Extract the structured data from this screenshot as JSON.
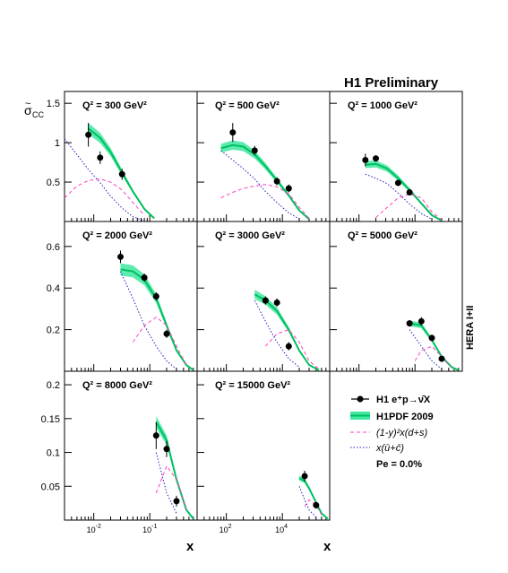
{
  "header": {
    "title": "H1 Preliminary",
    "side_label": "HERA I+II",
    "y_label_main": "σ",
    "y_label_accent": "~",
    "y_label_sub": "CC"
  },
  "x_axis": {
    "label": "x",
    "ticks_rows_1_2_left": [
      "10",
      "10"
    ],
    "tick_exp": [
      "-2",
      "-1"
    ]
  },
  "legend": {
    "data_label": "H1 e⁺p→ν̄X",
    "fit_label": "H1PDF 2009",
    "dashed_label": "(1-y)²x(d+s)",
    "dotted_label": "x(ū+c̄)",
    "pe_label": "Pe = 0.0%"
  },
  "colors": {
    "fit_line": "#00c060",
    "fit_band": "#40e8a0",
    "dashed": "#ff3fbf",
    "dotted": "#2020c0",
    "data": "#000000",
    "frame": "#000000"
  },
  "chart_data": {
    "type": "scatter",
    "x_scale": "log",
    "panels": [
      {
        "q2_label": "Q² = 300 GeV²",
        "ylim": [
          0,
          1.65
        ],
        "yticks": [
          0.5,
          1,
          1.5
        ],
        "points": [
          {
            "x": 0.008,
            "y": 1.1,
            "err": 0.15
          },
          {
            "x": 0.013,
            "y": 0.81,
            "err": 0.08
          },
          {
            "x": 0.032,
            "y": 0.6,
            "err": 0.07
          }
        ],
        "fit": [
          [
            0.008,
            1.18
          ],
          [
            0.013,
            1.06
          ],
          [
            0.02,
            0.88
          ],
          [
            0.032,
            0.62
          ],
          [
            0.05,
            0.38
          ],
          [
            0.08,
            0.16
          ],
          [
            0.12,
            0.04
          ]
        ],
        "dashed": [
          [
            0.003,
            0.3
          ],
          [
            0.005,
            0.45
          ],
          [
            0.008,
            0.52
          ],
          [
            0.013,
            0.54
          ],
          [
            0.02,
            0.5
          ],
          [
            0.032,
            0.4
          ],
          [
            0.05,
            0.24
          ],
          [
            0.08,
            0.08
          ]
        ],
        "dotted": [
          [
            0.003,
            1.05
          ],
          [
            0.005,
            0.85
          ],
          [
            0.008,
            0.66
          ],
          [
            0.013,
            0.49
          ],
          [
            0.02,
            0.32
          ],
          [
            0.032,
            0.17
          ],
          [
            0.05,
            0.06
          ],
          [
            0.08,
            0.01
          ]
        ]
      },
      {
        "q2_label": "Q² = 500 GeV²",
        "ylim": [
          0,
          1.65
        ],
        "yticks": [
          0.5,
          1,
          1.5
        ],
        "points": [
          {
            "x": 0.013,
            "y": 1.13,
            "err": 0.12
          },
          {
            "x": 0.032,
            "y": 0.9,
            "err": 0.06
          },
          {
            "x": 0.08,
            "y": 0.51,
            "err": 0.05
          },
          {
            "x": 0.13,
            "y": 0.42,
            "err": 0.05
          }
        ],
        "fit": [
          [
            0.008,
            0.93
          ],
          [
            0.013,
            0.97
          ],
          [
            0.02,
            0.95
          ],
          [
            0.032,
            0.85
          ],
          [
            0.05,
            0.7
          ],
          [
            0.08,
            0.52
          ],
          [
            0.13,
            0.33
          ],
          [
            0.2,
            0.14
          ],
          [
            0.3,
            0.03
          ]
        ],
        "dashed": [
          [
            0.008,
            0.3
          ],
          [
            0.013,
            0.37
          ],
          [
            0.02,
            0.42
          ],
          [
            0.032,
            0.45
          ],
          [
            0.05,
            0.47
          ],
          [
            0.08,
            0.44
          ],
          [
            0.13,
            0.35
          ],
          [
            0.2,
            0.18
          ],
          [
            0.3,
            0.04
          ]
        ],
        "dotted": [
          [
            0.008,
            0.9
          ],
          [
            0.013,
            0.78
          ],
          [
            0.02,
            0.67
          ],
          [
            0.032,
            0.54
          ],
          [
            0.05,
            0.38
          ],
          [
            0.08,
            0.24
          ],
          [
            0.13,
            0.11
          ],
          [
            0.2,
            0.03
          ]
        ]
      },
      {
        "q2_label": "Q² = 1000 GeV²",
        "ylim": [
          0,
          1.65
        ],
        "yticks": [
          0.5,
          1,
          1.5
        ],
        "points": [
          {
            "x": 0.013,
            "y": 0.78,
            "err": 0.08
          },
          {
            "x": 0.02,
            "y": 0.8,
            "err": 0.04
          },
          {
            "x": 0.05,
            "y": 0.49,
            "err": 0.04
          },
          {
            "x": 0.08,
            "y": 0.37,
            "err": 0.04
          }
        ],
        "fit": [
          [
            0.013,
            0.72
          ],
          [
            0.02,
            0.73
          ],
          [
            0.032,
            0.67
          ],
          [
            0.05,
            0.55
          ],
          [
            0.08,
            0.4
          ],
          [
            0.13,
            0.23
          ],
          [
            0.2,
            0.08
          ],
          [
            0.3,
            0.01
          ]
        ],
        "dashed": [
          [
            0.02,
            0.05
          ],
          [
            0.032,
            0.18
          ],
          [
            0.05,
            0.3
          ],
          [
            0.08,
            0.35
          ],
          [
            0.13,
            0.3
          ],
          [
            0.2,
            0.12
          ],
          [
            0.3,
            0.02
          ]
        ],
        "dotted": [
          [
            0.013,
            0.6
          ],
          [
            0.02,
            0.55
          ],
          [
            0.032,
            0.48
          ],
          [
            0.05,
            0.36
          ],
          [
            0.08,
            0.22
          ],
          [
            0.13,
            0.1
          ],
          [
            0.2,
            0.03
          ]
        ]
      },
      {
        "q2_label": "Q² = 2000 GeV²",
        "ylim": [
          0,
          0.72
        ],
        "yticks": [
          0.2,
          0.4,
          0.6
        ],
        "points": [
          {
            "x": 0.03,
            "y": 0.55,
            "err": 0.03
          },
          {
            "x": 0.08,
            "y": 0.45,
            "err": 0.02
          },
          {
            "x": 0.13,
            "y": 0.36,
            "err": 0.02
          },
          {
            "x": 0.2,
            "y": 0.18,
            "err": 0.02
          }
        ],
        "fit": [
          [
            0.03,
            0.49
          ],
          [
            0.05,
            0.48
          ],
          [
            0.08,
            0.44
          ],
          [
            0.13,
            0.35
          ],
          [
            0.2,
            0.22
          ],
          [
            0.3,
            0.1
          ],
          [
            0.45,
            0.03
          ],
          [
            0.6,
            0.005
          ]
        ],
        "dashed": [
          [
            0.05,
            0.14
          ],
          [
            0.08,
            0.22
          ],
          [
            0.13,
            0.26
          ],
          [
            0.2,
            0.22
          ],
          [
            0.3,
            0.12
          ],
          [
            0.45,
            0.03
          ]
        ],
        "dotted": [
          [
            0.03,
            0.48
          ],
          [
            0.05,
            0.35
          ],
          [
            0.08,
            0.22
          ],
          [
            0.13,
            0.12
          ],
          [
            0.2,
            0.05
          ],
          [
            0.3,
            0.01
          ]
        ]
      },
      {
        "q2_label": "Q² = 3000 GeV²",
        "ylim": [
          0,
          0.72
        ],
        "yticks": [
          0.2,
          0.4,
          0.6
        ],
        "points": [
          {
            "x": 0.05,
            "y": 0.34,
            "err": 0.02
          },
          {
            "x": 0.08,
            "y": 0.33,
            "err": 0.02
          },
          {
            "x": 0.13,
            "y": 0.12,
            "err": 0.02
          }
        ],
        "fit": [
          [
            0.032,
            0.37
          ],
          [
            0.05,
            0.34
          ],
          [
            0.08,
            0.29
          ],
          [
            0.13,
            0.2
          ],
          [
            0.2,
            0.1
          ],
          [
            0.3,
            0.03
          ],
          [
            0.45,
            0.005
          ]
        ],
        "dashed": [
          [
            0.05,
            0.12
          ],
          [
            0.08,
            0.18
          ],
          [
            0.13,
            0.2
          ],
          [
            0.2,
            0.14
          ],
          [
            0.3,
            0.05
          ],
          [
            0.45,
            0.01
          ]
        ],
        "dotted": [
          [
            0.032,
            0.34
          ],
          [
            0.05,
            0.24
          ],
          [
            0.08,
            0.14
          ],
          [
            0.13,
            0.06
          ],
          [
            0.2,
            0.02
          ]
        ]
      },
      {
        "q2_label": "Q² = 5000 GeV²",
        "ylim": [
          0,
          0.72
        ],
        "yticks": [
          0.2,
          0.4,
          0.6
        ],
        "points": [
          {
            "x": 0.08,
            "y": 0.23,
            "err": 0.015
          },
          {
            "x": 0.13,
            "y": 0.24,
            "err": 0.02
          },
          {
            "x": 0.2,
            "y": 0.16,
            "err": 0.015
          },
          {
            "x": 0.3,
            "y": 0.06,
            "err": 0.01
          }
        ],
        "fit": [
          [
            0.08,
            0.23
          ],
          [
            0.13,
            0.22
          ],
          [
            0.2,
            0.15
          ],
          [
            0.3,
            0.07
          ],
          [
            0.45,
            0.02
          ],
          [
            0.6,
            0.005
          ]
        ],
        "dashed": [
          [
            0.1,
            0.05
          ],
          [
            0.13,
            0.1
          ],
          [
            0.2,
            0.12
          ],
          [
            0.3,
            0.07
          ],
          [
            0.45,
            0.02
          ]
        ],
        "dotted": [
          [
            0.08,
            0.2
          ],
          [
            0.13,
            0.12
          ],
          [
            0.2,
            0.05
          ],
          [
            0.3,
            0.01
          ]
        ]
      },
      {
        "q2_label": "Q² = 8000 GeV²",
        "ylim": [
          0,
          0.22
        ],
        "yticks": [
          0.05,
          0.1,
          0.15,
          0.2
        ],
        "points": [
          {
            "x": 0.13,
            "y": 0.125,
            "err": 0.02
          },
          {
            "x": 0.2,
            "y": 0.105,
            "err": 0.012
          },
          {
            "x": 0.3,
            "y": 0.028,
            "err": 0.008
          }
        ],
        "fit": [
          [
            0.13,
            0.145
          ],
          [
            0.2,
            0.118
          ],
          [
            0.3,
            0.06
          ],
          [
            0.45,
            0.015
          ],
          [
            0.6,
            0.002
          ]
        ],
        "dashed": [
          [
            0.13,
            0.04
          ],
          [
            0.2,
            0.08
          ],
          [
            0.3,
            0.06
          ],
          [
            0.45,
            0.015
          ]
        ],
        "dotted": [
          [
            0.13,
            0.1
          ],
          [
            0.2,
            0.04
          ],
          [
            0.3,
            0.01
          ]
        ]
      },
      {
        "q2_label": "Q² = 15000 GeV²",
        "ylim": [
          0,
          0.22
        ],
        "yticks": [
          0.05,
          0.1,
          0.15,
          0.2
        ],
        "points": [
          {
            "x": 0.25,
            "y": 0.065,
            "err": 0.008
          },
          {
            "x": 0.4,
            "y": 0.022,
            "err": 0.005
          }
        ],
        "fit": [
          [
            0.2,
            0.062
          ],
          [
            0.25,
            0.058
          ],
          [
            0.3,
            0.047
          ],
          [
            0.4,
            0.026
          ],
          [
            0.5,
            0.01
          ],
          [
            0.65,
            0.002
          ]
        ],
        "dashed": [
          [
            0.25,
            0.02
          ],
          [
            0.3,
            0.03
          ],
          [
            0.4,
            0.022
          ],
          [
            0.5,
            0.008
          ]
        ],
        "dotted": [
          [
            0.2,
            0.05
          ],
          [
            0.25,
            0.03
          ],
          [
            0.3,
            0.015
          ],
          [
            0.4,
            0.004
          ]
        ]
      }
    ]
  }
}
